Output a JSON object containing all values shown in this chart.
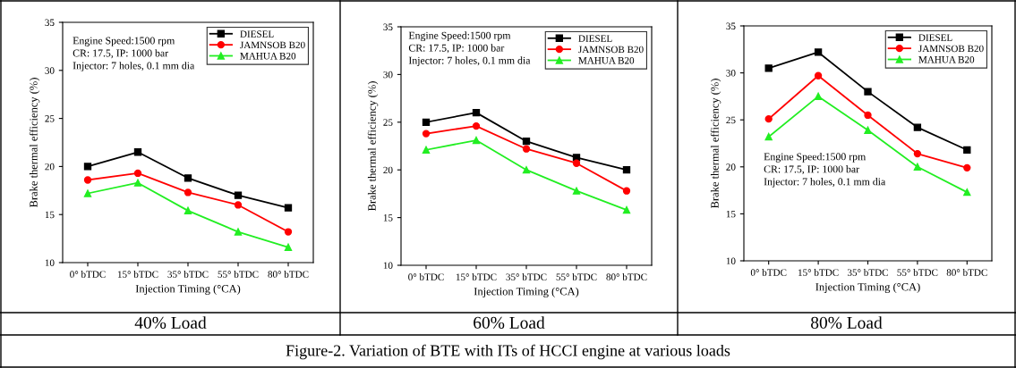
{
  "chart_data": [
    {
      "type": "line",
      "title": "40% Load",
      "xlabel": "Injection Timing (°CA)",
      "ylabel": "Brake thermal efficiency (%)",
      "categories": [
        "0° bTDC",
        "15° bTDC",
        "35° bTDC",
        "55° bTDC",
        "80° bTDC"
      ],
      "ylim": [
        10,
        35
      ],
      "yticks": [
        10,
        15,
        20,
        25,
        30,
        35
      ],
      "legend": "top right",
      "grid": false,
      "series": [
        {
          "name": "DIESEL",
          "color": "#000000",
          "marker": "square",
          "values": [
            20,
            21.5,
            18.8,
            17,
            15.7
          ]
        },
        {
          "name": "JAMNSOB B20",
          "color": "#ff0000",
          "marker": "circle",
          "values": [
            18.6,
            19.3,
            17.3,
            16,
            13.2
          ]
        },
        {
          "name": "MAHUA B20",
          "color": "#22ee22",
          "marker": "triangle",
          "values": [
            17.2,
            18.3,
            15.4,
            13.2,
            11.6
          ]
        }
      ],
      "annotations": [
        "Engine Speed:1500 rpm\nCR: 17.5, IP: 1000 bar\nInjector: 7 holes, 0.1 mm dia",
        "Figure-2. Variation of BTE with ITs of HCCI engine at various loads"
      ]
    },
    {
      "type": "line",
      "title": "60% Load",
      "xlabel": "Injection Timing (°CA)",
      "ylabel": "Brake thermal efficiency (%)",
      "categories": [
        "0° bTDC",
        "15° bTDC",
        "35° bTDC",
        "55° bTDC",
        "80° bTDC"
      ],
      "ylim": [
        10,
        35
      ],
      "yticks": [
        10,
        15,
        20,
        25,
        30,
        35
      ],
      "legend": "top right",
      "grid": false,
      "series": [
        {
          "name": "DIESEL",
          "color": "#000000",
          "marker": "square",
          "values": [
            25,
            26,
            23,
            21.3,
            20
          ]
        },
        {
          "name": "JAMNSOB B20",
          "color": "#ff0000",
          "marker": "circle",
          "values": [
            23.8,
            24.6,
            22.2,
            20.7,
            17.8
          ]
        },
        {
          "name": "MAHUA B20",
          "color": "#22ee22",
          "marker": "triangle",
          "values": [
            22.1,
            23.1,
            20,
            17.8,
            15.8
          ]
        }
      ],
      "annotations": [
        "Engine Speed:1500 rpm\nCR: 17.5, IP: 1000 bar\nInjector: 7 holes, 0.1 mm dia"
      ]
    },
    {
      "type": "line",
      "title": "80% Load",
      "xlabel": "Injection Timing (°CA)",
      "ylabel": "Brake thermal efficiency (%)",
      "categories": [
        "0° bTDC",
        "15° bTDC",
        "35° bTDC",
        "55° bTDC",
        "80° bTDC"
      ],
      "ylim": [
        10,
        35
      ],
      "yticks": [
        10,
        15,
        20,
        25,
        30,
        35
      ],
      "legend": "top right",
      "grid": false,
      "series": [
        {
          "name": "DIESEL",
          "color": "#000000",
          "marker": "square",
          "values": [
            30.5,
            32.2,
            28,
            24.2,
            21.8
          ]
        },
        {
          "name": "JAMNSOB B20",
          "color": "#ff0000",
          "marker": "circle",
          "values": [
            25.1,
            29.7,
            25.5,
            21.4,
            19.9
          ]
        },
        {
          "name": "MAHUA B20",
          "color": "#22ee22",
          "marker": "triangle",
          "values": [
            23.2,
            27.5,
            23.9,
            20,
            17.3
          ]
        }
      ],
      "annotations": [
        "Engine Speed:1500 rpm\nCR: 17.5, IP: 1000 bar\nInjector: 7 holes, 0.1 mm dia"
      ]
    }
  ]
}
